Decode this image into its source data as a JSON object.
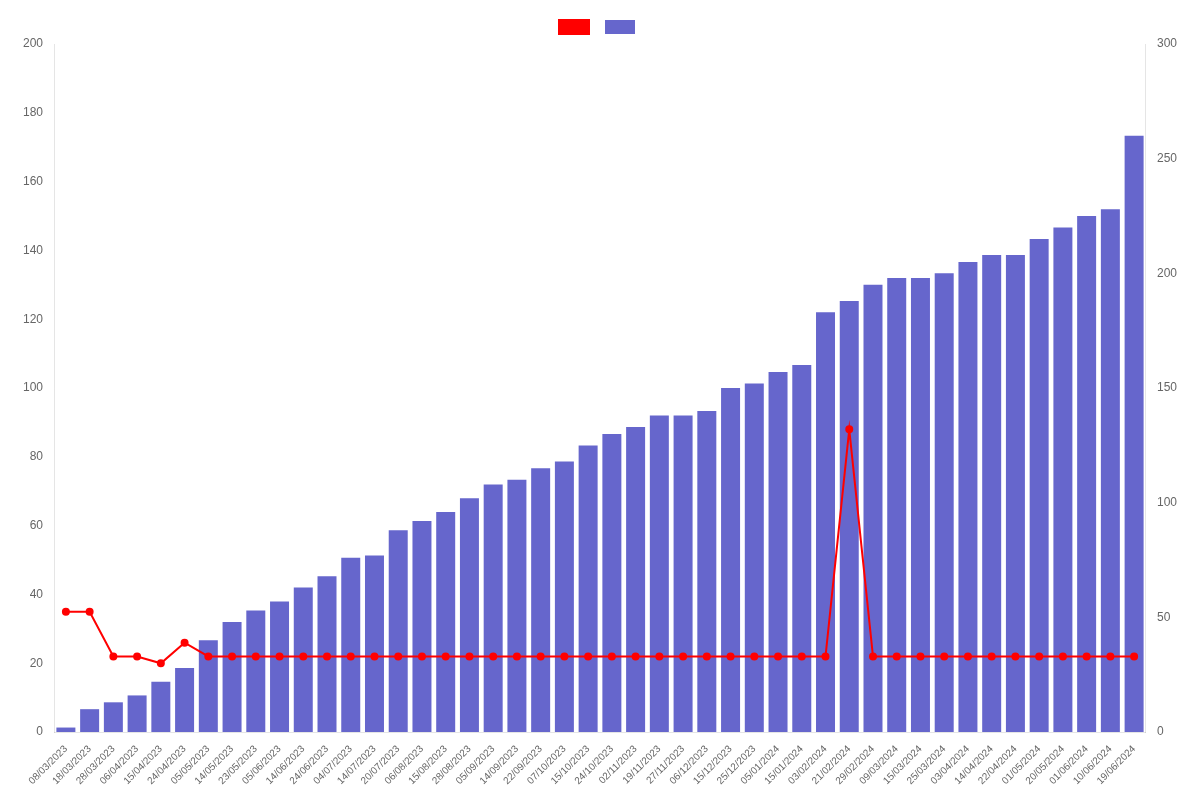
{
  "chart_data": {
    "type": "bar",
    "categories": [
      "08/03/2023",
      "18/03/2023",
      "28/03/2023",
      "06/04/2023",
      "15/04/2023",
      "24/04/2023",
      "05/05/2023",
      "14/05/2023",
      "23/05/2023",
      "05/06/2023",
      "14/06/2023",
      "24/06/2023",
      "04/07/2023",
      "14/07/2023",
      "20/07/2023",
      "06/08/2023",
      "15/08/2023",
      "28/08/2023",
      "05/09/2023",
      "14/09/2023",
      "22/09/2023",
      "07/10/2023",
      "15/10/2023",
      "24/10/2023",
      "02/11/2023",
      "19/11/2023",
      "27/11/2023",
      "06/12/2023",
      "15/12/2023",
      "25/12/2023",
      "05/01/2024",
      "15/01/2024",
      "03/02/2024",
      "21/02/2024",
      "29/02/2024",
      "09/03/2024",
      "15/03/2024",
      "25/03/2024",
      "03/04/2024",
      "14/04/2024",
      "22/04/2024",
      "01/05/2024",
      "20/05/2024",
      "01/06/2024",
      "10/06/2024",
      "19/06/2024"
    ],
    "series": [
      {
        "type": "line",
        "color": "#ff0000",
        "marker": "circle",
        "axis": "y",
        "values": [
          35,
          35,
          22,
          22,
          20,
          26,
          22,
          22,
          22,
          22,
          22,
          22,
          22,
          22,
          22,
          22,
          22,
          22,
          22,
          22,
          22,
          22,
          22,
          22,
          22,
          22,
          22,
          22,
          22,
          22,
          22,
          22,
          22,
          88,
          22,
          22,
          22,
          22,
          22,
          22,
          22,
          22,
          22,
          22,
          22,
          22
        ]
      },
      {
        "type": "bar",
        "color": "#6666cc",
        "axis": "y2",
        "values": [
          2,
          10,
          13,
          16,
          22,
          28,
          40,
          48,
          53,
          57,
          63,
          68,
          76,
          77,
          88,
          92,
          96,
          102,
          108,
          110,
          115,
          118,
          125,
          130,
          133,
          138,
          138,
          140,
          150,
          152,
          157,
          160,
          183,
          188,
          195,
          198,
          198,
          200,
          205,
          208,
          208,
          215,
          220,
          225,
          228,
          260
        ]
      }
    ],
    "ylim": [
      0,
      200
    ],
    "yticks": [
      0,
      20,
      40,
      60,
      80,
      100,
      120,
      140,
      160,
      180,
      200
    ],
    "y2lim": [
      0,
      300
    ],
    "y2ticks": [
      0,
      50,
      100,
      150,
      200,
      250,
      300
    ],
    "grid": false,
    "legend": "top"
  }
}
